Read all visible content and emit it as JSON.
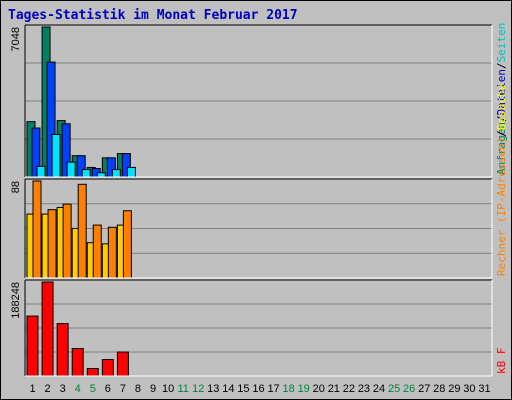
{
  "chart_data": {
    "title": "Tages-Statistik im Monat Februar 2017",
    "days": [
      "1",
      "2",
      "3",
      "4",
      "5",
      "6",
      "7",
      "8",
      "9",
      "10",
      "11",
      "12",
      "13",
      "14",
      "15",
      "16",
      "17",
      "18",
      "19",
      "20",
      "21",
      "22",
      "23",
      "24",
      "25",
      "26",
      "27",
      "28",
      "29",
      "30",
      "31"
    ],
    "weekend_days": [
      "4",
      "5",
      "11",
      "12",
      "18",
      "19",
      "25",
      "26"
    ],
    "panels": [
      {
        "type": "bar",
        "ymax_label": "7048",
        "ylim": [
          0,
          7048
        ],
        "legend": [
          {
            "text": "Anfragen",
            "color": "#008060"
          },
          {
            "text": "/",
            "color": "#000000"
          },
          {
            "text": "Dateien",
            "color": "#0000c0"
          },
          {
            "text": "/",
            "color": "#000000"
          },
          {
            "text": "Seiten",
            "color": "#00c0c0"
          }
        ],
        "series": [
          {
            "key": "anfragen",
            "color": "#008060",
            "values": [
              2600,
              7048,
              2650,
              1000,
              450,
              900,
              1100
            ]
          },
          {
            "key": "dateien",
            "color": "#0040ff",
            "values": [
              2300,
              5400,
              2500,
              1000,
              400,
              900,
              1100
            ]
          },
          {
            "key": "seiten",
            "color": "#00e0ff",
            "values": [
              500,
              2000,
              700,
              350,
              200,
              350,
              450
            ]
          }
        ]
      },
      {
        "type": "bar",
        "ymax_label": "88",
        "ylim": [
          0,
          88
        ],
        "legend": [
          {
            "text": "Rechner",
            "color": "#ff8000"
          },
          {
            "text": " (IP-Adressen)",
            "color": "#ff8000"
          },
          {
            "text": "/",
            "color": "#000000"
          },
          {
            "text": "Besuche",
            "color": "#ffff00"
          }
        ],
        "series": [
          {
            "key": "besuche",
            "color": "#ffcc00",
            "values": [
              58,
              58,
              64,
              45,
              32,
              31,
              48
            ]
          },
          {
            "key": "rechner",
            "color": "#ff8000",
            "values": [
              88,
              62,
              67,
              85,
              48,
              46,
              61
            ]
          }
        ]
      },
      {
        "type": "bar",
        "ymax_label": "188248",
        "ylim": [
          0,
          188248
        ],
        "legend": [
          {
            "text": "kB F",
            "color": "#ff0000"
          }
        ],
        "series": [
          {
            "key": "kb",
            "color": "#ff0000",
            "values": [
              120000,
              188248,
              105000,
              55000,
              15000,
              33000,
              48000
            ]
          }
        ]
      }
    ]
  }
}
